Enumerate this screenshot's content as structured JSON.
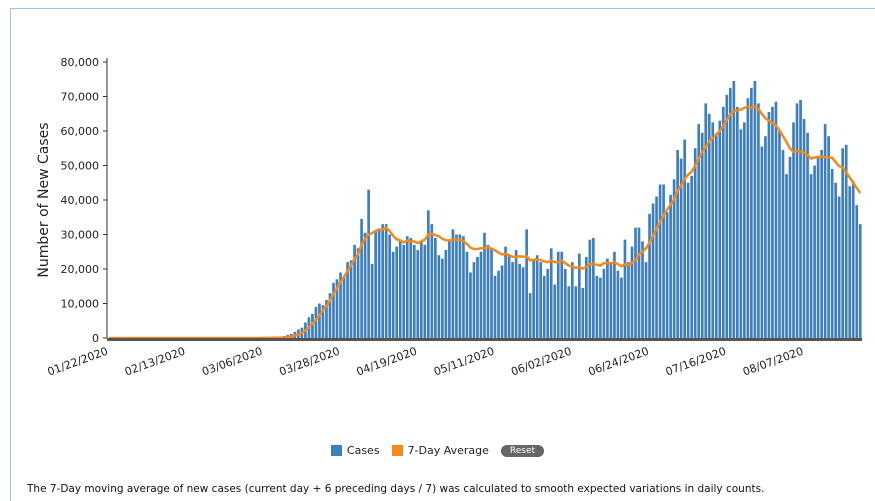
{
  "chart_data": {
    "type": "bar",
    "y_label": "Number of New Cases",
    "ylim": [
      0,
      80000
    ],
    "yticks": [
      0,
      {
        "value": 10000,
        "label": "10,000"
      },
      {
        "value": 20000,
        "label": "20,000"
      },
      {
        "value": 30000,
        "label": "30,000"
      },
      {
        "value": 40000,
        "label": "40,000"
      },
      {
        "value": 50000,
        "label": "50,000"
      },
      {
        "value": 60000,
        "label": "60,000"
      },
      {
        "value": 70000,
        "label": "70,000"
      },
      {
        "value": 80000,
        "label": "80,000"
      }
    ],
    "categories": [
      "01/22/2020",
      null,
      null,
      null,
      null,
      null,
      null,
      null,
      null,
      null,
      null,
      null,
      null,
      null,
      null,
      null,
      null,
      null,
      null,
      null,
      null,
      null,
      "02/13/2020",
      null,
      null,
      null,
      null,
      null,
      null,
      null,
      null,
      null,
      null,
      null,
      null,
      null,
      null,
      null,
      null,
      null,
      null,
      null,
      null,
      null,
      "03/06/2020",
      null,
      null,
      null,
      null,
      null,
      null,
      null,
      null,
      null,
      null,
      null,
      null,
      null,
      null,
      null,
      null,
      null,
      null,
      null,
      null,
      null,
      "03/28/2020",
      null,
      null,
      null,
      null,
      null,
      null,
      null,
      null,
      null,
      null,
      null,
      null,
      null,
      null,
      null,
      null,
      null,
      null,
      null,
      null,
      null,
      "04/19/2020",
      null,
      null,
      null,
      null,
      null,
      null,
      null,
      null,
      null,
      null,
      null,
      null,
      null,
      null,
      null,
      null,
      null,
      null,
      null,
      null,
      null,
      "05/11/2020",
      null,
      null,
      null,
      null,
      null,
      null,
      null,
      null,
      null,
      null,
      null,
      null,
      null,
      null,
      null,
      null,
      null,
      null,
      null,
      null,
      null,
      "06/02/2020",
      null,
      null,
      null,
      null,
      null,
      null,
      null,
      null,
      null,
      null,
      null,
      null,
      null,
      null,
      null,
      null,
      null,
      null,
      null,
      null,
      null,
      "06/24/2020",
      null,
      null,
      null,
      null,
      null,
      null,
      null,
      null,
      null,
      null,
      null,
      null,
      null,
      null,
      null,
      null,
      null,
      null,
      null,
      null,
      null,
      "07/16/2020",
      null,
      null,
      null,
      null,
      null,
      null,
      null,
      null,
      null,
      null,
      null,
      null,
      null,
      null,
      null,
      null,
      null,
      null,
      null,
      null,
      null,
      "08/07/2020",
      null,
      null,
      null,
      null,
      null,
      null,
      null,
      null,
      null,
      null,
      null,
      null,
      null,
      null,
      null,
      null
    ],
    "series": [
      {
        "name": "Cases",
        "type": "bar",
        "color": "#3d7ebf",
        "values": [
          0,
          0,
          0,
          0,
          0,
          0,
          0,
          0,
          0,
          0,
          0,
          0,
          0,
          0,
          0,
          0,
          0,
          0,
          0,
          0,
          0,
          0,
          0,
          0,
          0,
          0,
          0,
          0,
          0,
          0,
          0,
          0,
          0,
          0,
          0,
          0,
          0,
          0,
          0,
          0,
          20,
          30,
          40,
          60,
          80,
          100,
          150,
          200,
          300,
          400,
          600,
          900,
          1200,
          1800,
          2500,
          3000,
          4500,
          6000,
          7000,
          9000,
          10000,
          9500,
          11000,
          13000,
          16000,
          17000,
          19000,
          18000,
          22000,
          22500,
          27000,
          26000,
          34500,
          30500,
          43000,
          21500,
          31000,
          31500,
          33000,
          33000,
          30000,
          25000,
          26500,
          28500,
          27000,
          29500,
          29000,
          27000,
          25500,
          28000,
          27000,
          37000,
          33000,
          29000,
          24000,
          23000,
          25500,
          28000,
          31500,
          30000,
          30000,
          29500,
          25000,
          19000,
          22000,
          23500,
          25000,
          30500,
          27000,
          26000,
          18000,
          19500,
          21000,
          26500,
          24000,
          22000,
          25500,
          21500,
          20500,
          31500,
          13000,
          22500,
          24000,
          22000,
          18000,
          20000,
          26000,
          15500,
          25000,
          25000,
          20000,
          15000,
          22000,
          15000,
          24500,
          14500,
          23500,
          28500,
          29000,
          18000,
          17500,
          20000,
          23000,
          22000,
          25000,
          19500,
          17500,
          28500,
          22000,
          26500,
          32000,
          32000,
          28000,
          22000,
          36000,
          39000,
          41000,
          44500,
          44500,
          36500,
          41500,
          46000,
          54500,
          52000,
          57500,
          45000,
          47000,
          55000,
          62000,
          59500,
          68000,
          65000,
          62500,
          59000,
          63000,
          67000,
          70500,
          72500,
          74500,
          67000,
          60500,
          62500,
          69500,
          72500,
          74500,
          68000,
          55500,
          58500,
          65500,
          67000,
          68500,
          60000,
          54500,
          47500,
          52500,
          62500,
          68000,
          69000,
          63500,
          59500,
          47500,
          50000,
          52500,
          54500,
          62000,
          58500,
          49000,
          45000,
          41000,
          55000,
          56000,
          44000,
          45500,
          38500,
          33000
        ]
      },
      {
        "name": "7-Day Average",
        "type": "line",
        "color": "#f28a1d",
        "values": [
          0,
          0,
          0,
          0,
          0,
          0,
          0,
          0,
          0,
          0,
          0,
          0,
          0,
          0,
          0,
          0,
          0,
          0,
          0,
          0,
          0,
          0,
          0,
          0,
          0,
          0,
          0,
          0,
          0,
          0,
          0,
          0,
          0,
          0,
          0,
          0,
          0,
          0,
          0,
          0,
          0,
          0,
          0,
          10,
          20,
          30,
          50,
          70,
          90,
          100,
          100,
          200,
          400,
          700,
          1000,
          1500,
          2200,
          3100,
          4200,
          5300,
          6600,
          8000,
          9300,
          10900,
          12800,
          14400,
          16300,
          17700,
          19500,
          21000,
          23000,
          24300,
          27000,
          28800,
          30000,
          30400,
          31000,
          31500,
          31500,
          32000,
          31000,
          29600,
          28600,
          28300,
          27700,
          28300,
          28000,
          28000,
          27500,
          28000,
          28500,
          30000,
          30200,
          29800,
          29500,
          28800,
          28300,
          28300,
          28500,
          28500,
          28500,
          28000,
          27300,
          26200,
          25800,
          25800,
          26000,
          26100,
          26300,
          25900,
          25400,
          24800,
          24200,
          24400,
          24000,
          23500,
          23500,
          23700,
          23500,
          23700,
          22500,
          22700,
          22700,
          22600,
          22200,
          22000,
          22400,
          22000,
          22000,
          22400,
          21700,
          21000,
          20700,
          20300,
          20600,
          20100,
          20600,
          21400,
          21500,
          21200,
          21000,
          21700,
          21700,
          21600,
          22000,
          21400,
          20800,
          21300,
          21200,
          21700,
          22600,
          24200,
          25000,
          26000,
          27600,
          29700,
          31500,
          33700,
          35500,
          37200,
          38600,
          40200,
          42700,
          44200,
          46100,
          47400,
          48200,
          50000,
          52000,
          53900,
          55300,
          57000,
          58000,
          59000,
          60000,
          61600,
          63200,
          64900,
          65700,
          66100,
          66200,
          66700,
          67000,
          66800,
          67000,
          66500,
          64900,
          63700,
          63000,
          62300,
          61600,
          60200,
          58500,
          56800,
          54900,
          54000,
          54200,
          54000,
          53700,
          53000,
          52000,
          52300,
          52500,
          52600,
          52400,
          52300,
          52200,
          51000,
          49800,
          49500,
          48000,
          46500,
          45000,
          43500,
          42000
        ]
      }
    ]
  },
  "reset_button": "Reset",
  "footnote": "The 7-Day moving average of new cases (current day + 6 preceding days / 7) was calculated to smooth expected variations in daily counts."
}
